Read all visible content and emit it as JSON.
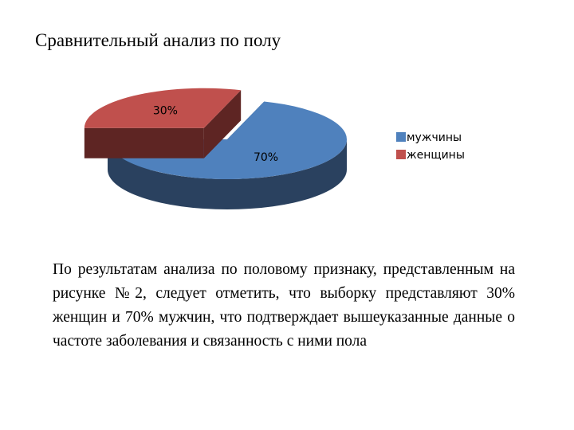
{
  "slide": {
    "title": "Сравнительный анализ по полу",
    "body": "По результатам анализа по половому признаку, представленным на рисунке №2, следует отметить, что выборку представляют 30% женщин и 70% мужчин, что подтверждает вышеуказанные данные о частоте заболевания и связанность с ними пола"
  },
  "chart_data": {
    "type": "pie",
    "style": "3d-exploded",
    "title": "",
    "legend_position": "right",
    "categories": [
      "мужчины",
      "женщины"
    ],
    "values": [
      70,
      30
    ],
    "labels": [
      "70%",
      "30%"
    ],
    "colors": [
      "#4f81bd",
      "#c0504d"
    ],
    "side_colors": [
      "#2a415f",
      "#5e2523"
    ]
  }
}
